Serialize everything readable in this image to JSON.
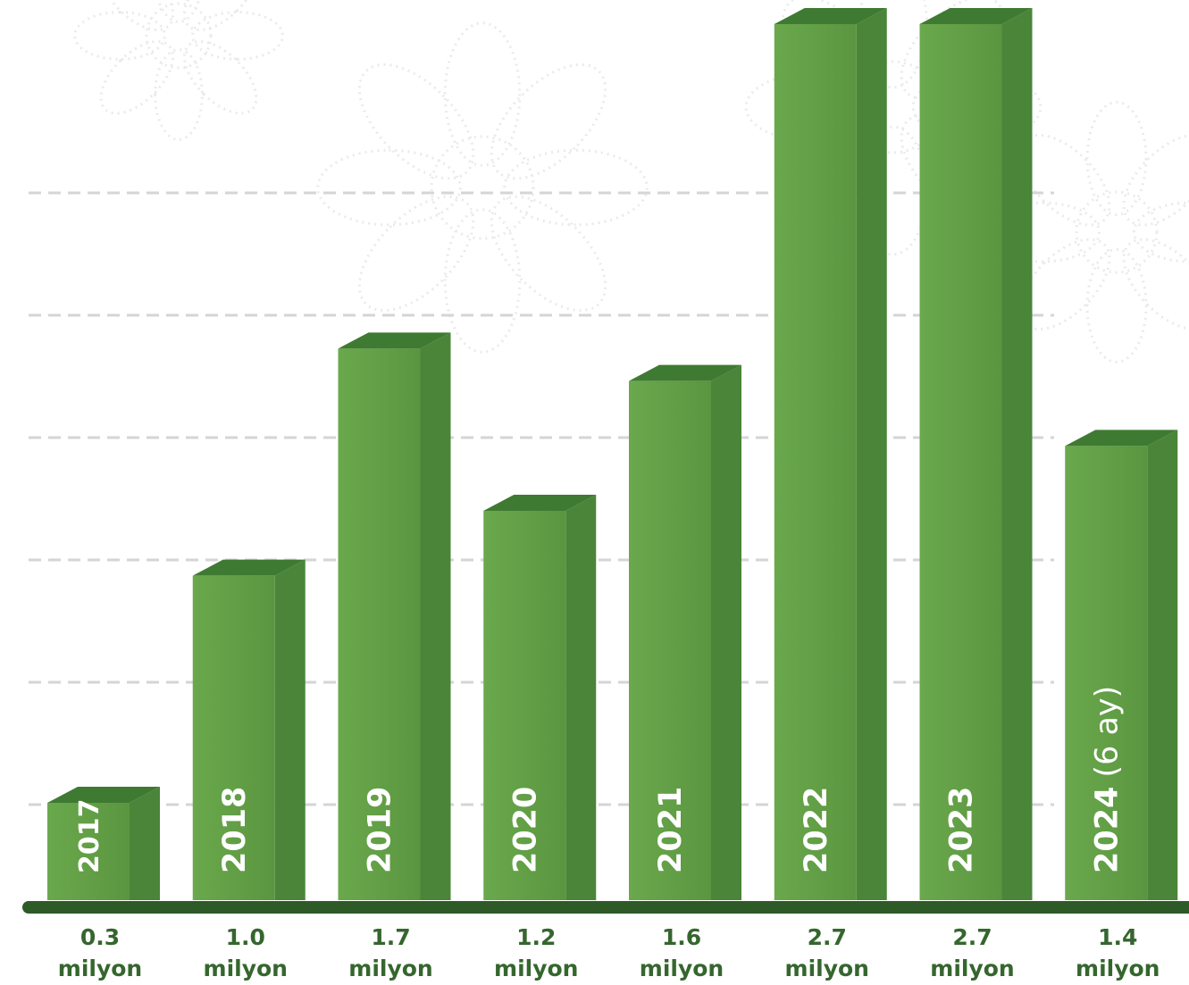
{
  "chart_data": {
    "type": "bar",
    "title": "",
    "xlabel": "",
    "ylabel": "",
    "categories": [
      "2017",
      "2018",
      "2019",
      "2020",
      "2021",
      "2022",
      "2023",
      "2024"
    ],
    "category_suffixes": [
      "",
      "",
      "",
      "",
      "",
      "",
      "",
      "(6 ay)"
    ],
    "values": [
      0.3,
      1.0,
      1.7,
      1.2,
      1.6,
      2.7,
      2.7,
      1.4
    ],
    "value_labels": [
      "0.3",
      "1.0",
      "1.7",
      "1.2",
      "1.6",
      "2.7",
      "2.7",
      "1.4"
    ],
    "unit_label": "milyon",
    "ylim": [
      0,
      2.7
    ],
    "grid": true,
    "legend": "none",
    "colors": {
      "bar_front": "#62a046",
      "bar_side": "#4a8539",
      "bar_top": "#3f7a32",
      "baseline": "#2d5a27",
      "grid": "#d5d5d5",
      "value_text": "#35662e",
      "decor": "#d9d9d9"
    }
  }
}
